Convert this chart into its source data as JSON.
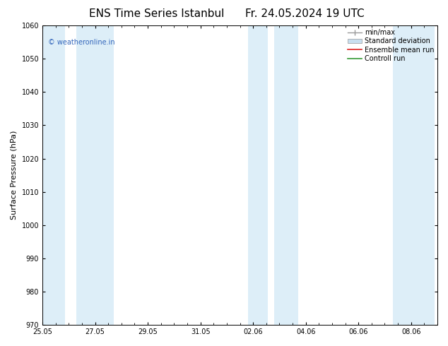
{
  "title": "ENS Time Series Istanbul",
  "title2": "Fr. 24.05.2024 19 UTC",
  "ylabel": "Surface Pressure (hPa)",
  "ylim": [
    970,
    1060
  ],
  "yticks": [
    970,
    980,
    990,
    1000,
    1010,
    1020,
    1030,
    1040,
    1050,
    1060
  ],
  "xtick_labels": [
    "25.05",
    "27.05",
    "29.05",
    "31.05",
    "02.06",
    "04.06",
    "06.06",
    "08.06"
  ],
  "xtick_positions": [
    0,
    2,
    4,
    6,
    8,
    10,
    12,
    14
  ],
  "shaded_bands": [
    {
      "x_start": 0.0,
      "x_end": 0.85,
      "color": "#ddeef8"
    },
    {
      "x_start": 1.3,
      "x_end": 2.7,
      "color": "#ddeef8"
    },
    {
      "x_start": 7.8,
      "x_end": 8.55,
      "color": "#ddeef8"
    },
    {
      "x_start": 8.8,
      "x_end": 9.7,
      "color": "#ddeef8"
    },
    {
      "x_start": 13.3,
      "x_end": 14.0,
      "color": "#ddeef8"
    },
    {
      "x_start": 14.0,
      "x_end": 14.9,
      "color": "#ddeef8"
    }
  ],
  "watermark_text": "© weatheronline.in",
  "watermark_color": "#3366bb",
  "legend_labels": [
    "min/max",
    "Standard deviation",
    "Ensemble mean run",
    "Controll run"
  ],
  "legend_colors_handle": [
    "#999999",
    "#c8dff0",
    "#dd2222",
    "#339933"
  ],
  "background_color": "#ffffff",
  "plot_bg_color": "#ffffff",
  "x_min": 0,
  "x_max": 15,
  "title_fontsize": 11,
  "tick_fontsize": 7,
  "ylabel_fontsize": 8,
  "legend_fontsize": 7,
  "watermark_fontsize": 7
}
